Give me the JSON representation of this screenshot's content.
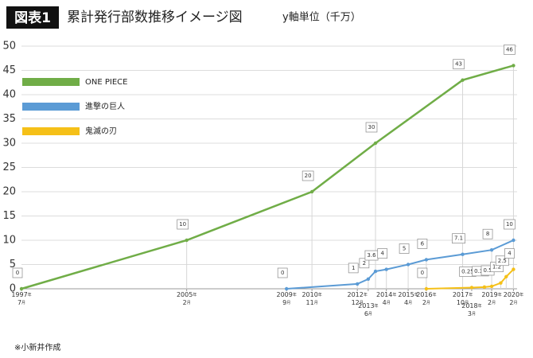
{
  "chart_data": {
    "type": "line",
    "figure_label": "図表1",
    "title": "累計発行部数推移イメージ図",
    "subtitle": "y軸単位（千万）",
    "note": "※小新井作成",
    "xlim": [
      "1997-07",
      "2020-04"
    ],
    "xticks": [
      {
        "value": "1997-07",
        "label": "1997年7月"
      },
      {
        "value": "2005-02",
        "label": "2005年2月"
      },
      {
        "value": "2009-09",
        "label": "2009年9月"
      },
      {
        "value": "2010-11",
        "label": "2010年11月"
      },
      {
        "value": "2012-12",
        "label": "2012年12月"
      },
      {
        "value": "2013-06",
        "label": "2013年6月"
      },
      {
        "value": "2014-04",
        "label": "2014年4月"
      },
      {
        "value": "2015-04",
        "label": "2015年4月"
      },
      {
        "value": "2016-02",
        "label": "2016年2月"
      },
      {
        "value": "2017-10",
        "label": "2017年10月"
      },
      {
        "value": "2018-03",
        "label": "2018年3月"
      },
      {
        "value": "2019-02",
        "label": "2019年2月"
      },
      {
        "value": "2020-02",
        "label": "2020年2月"
      }
    ],
    "ylim": [
      0,
      50
    ],
    "yticks": [
      0,
      5,
      10,
      15,
      20,
      25,
      30,
      35,
      40,
      45,
      50
    ],
    "grid": true,
    "legend": "upper left",
    "series": [
      {
        "name": "ONE PIECE",
        "color": "#70ad47",
        "x": [
          "1997-07",
          "2005-02",
          "2010-11",
          "2013-10",
          "2017-10",
          "2020-02"
        ],
        "values": [
          0,
          10,
          20,
          30,
          43,
          46
        ]
      },
      {
        "name": "進撃の巨人",
        "color": "#5b9bd5",
        "x": [
          "2009-09",
          "2012-12",
          "2013-06",
          "2013-10",
          "2014-04",
          "2015-04",
          "2016-02",
          "2017-10",
          "2019-02",
          "2020-02"
        ],
        "values": [
          0,
          1,
          2,
          3.6,
          4,
          5,
          6,
          7.1,
          8,
          10
        ]
      },
      {
        "name": "鬼滅の刃",
        "color": "#f5c018",
        "x": [
          "2016-02",
          "2018-03",
          "2018-10",
          "2019-02",
          "2019-07",
          "2019-10",
          "2020-02"
        ],
        "values": [
          0,
          0.25,
          0.35,
          0.5,
          1.2,
          2.5,
          4
        ]
      }
    ]
  }
}
